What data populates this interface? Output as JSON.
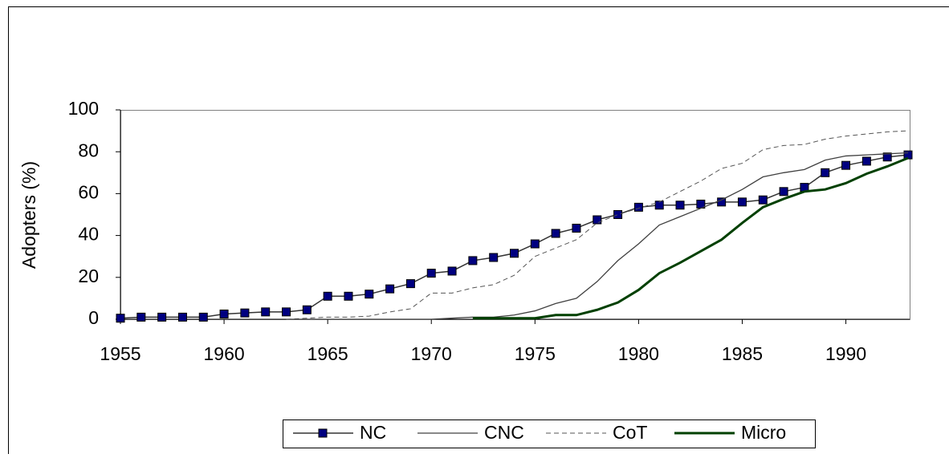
{
  "chart_data": {
    "type": "line",
    "y_label": "Adopters (%)",
    "x": [
      1955,
      1956,
      1957,
      1958,
      1959,
      1960,
      1961,
      1962,
      1963,
      1964,
      1965,
      1966,
      1967,
      1968,
      1969,
      1970,
      1971,
      1972,
      1973,
      1974,
      1975,
      1976,
      1977,
      1978,
      1979,
      1980,
      1981,
      1982,
      1983,
      1984,
      1985,
      1986,
      1987,
      1988,
      1989,
      1990,
      1991,
      1992,
      1993
    ],
    "xlim": [
      1955,
      1993
    ],
    "xticks": [
      1955,
      1960,
      1965,
      1970,
      1975,
      1980,
      1985,
      1990
    ],
    "ylim": [
      0,
      100
    ],
    "yticks": [
      0,
      20,
      40,
      60,
      80,
      100
    ],
    "grid": false,
    "legend": "bottom",
    "series": [
      {
        "name": "NC",
        "color": "#333333",
        "marker": "square",
        "marker_color": "#000080",
        "width": 1.5,
        "dash": false,
        "values": [
          0.5,
          1,
          1,
          1,
          1,
          2.5,
          3,
          3.5,
          3.5,
          4.5,
          11,
          11,
          12,
          14.5,
          17,
          22,
          23,
          28,
          29.5,
          31.5,
          36,
          41,
          43.5,
          47.5,
          50,
          53.5,
          54.5,
          54.5,
          55,
          56,
          56,
          57,
          61,
          63,
          70,
          73.5,
          75.5,
          77.5,
          78.5
        ]
      },
      {
        "name": "CNC",
        "color": "#404040",
        "width": 1.3,
        "dash": false,
        "values": [
          null,
          null,
          null,
          null,
          null,
          null,
          null,
          null,
          0,
          0,
          0,
          0,
          0,
          0,
          0,
          0,
          0.5,
          1,
          1,
          2,
          4,
          7.5,
          10,
          18,
          28,
          36,
          45,
          49,
          53,
          57,
          62,
          68,
          70,
          71.5,
          76,
          78,
          78.5,
          79,
          79.5
        ]
      },
      {
        "name": "CoT",
        "color": "#555555",
        "width": 1,
        "dash": true,
        "values": [
          null,
          null,
          null,
          null,
          null,
          null,
          null,
          null,
          0,
          0.5,
          1,
          1,
          1.5,
          3.5,
          5,
          12.5,
          12.5,
          15,
          16.5,
          21,
          30,
          34,
          38,
          46,
          50,
          53,
          56,
          61,
          66,
          72,
          74.5,
          81,
          83,
          83.5,
          86,
          87.5,
          88.5,
          89.5,
          90
        ]
      },
      {
        "name": "Micro",
        "color": "#004000",
        "width": 3,
        "dash": false,
        "values": [
          null,
          null,
          null,
          null,
          null,
          null,
          null,
          null,
          null,
          null,
          null,
          null,
          null,
          null,
          null,
          null,
          null,
          0.5,
          0.5,
          0.5,
          0.5,
          2,
          2,
          4.5,
          8,
          14,
          22,
          27,
          32.5,
          38,
          46,
          53.5,
          57.5,
          61,
          62,
          65,
          69.5,
          73,
          77
        ]
      }
    ]
  }
}
